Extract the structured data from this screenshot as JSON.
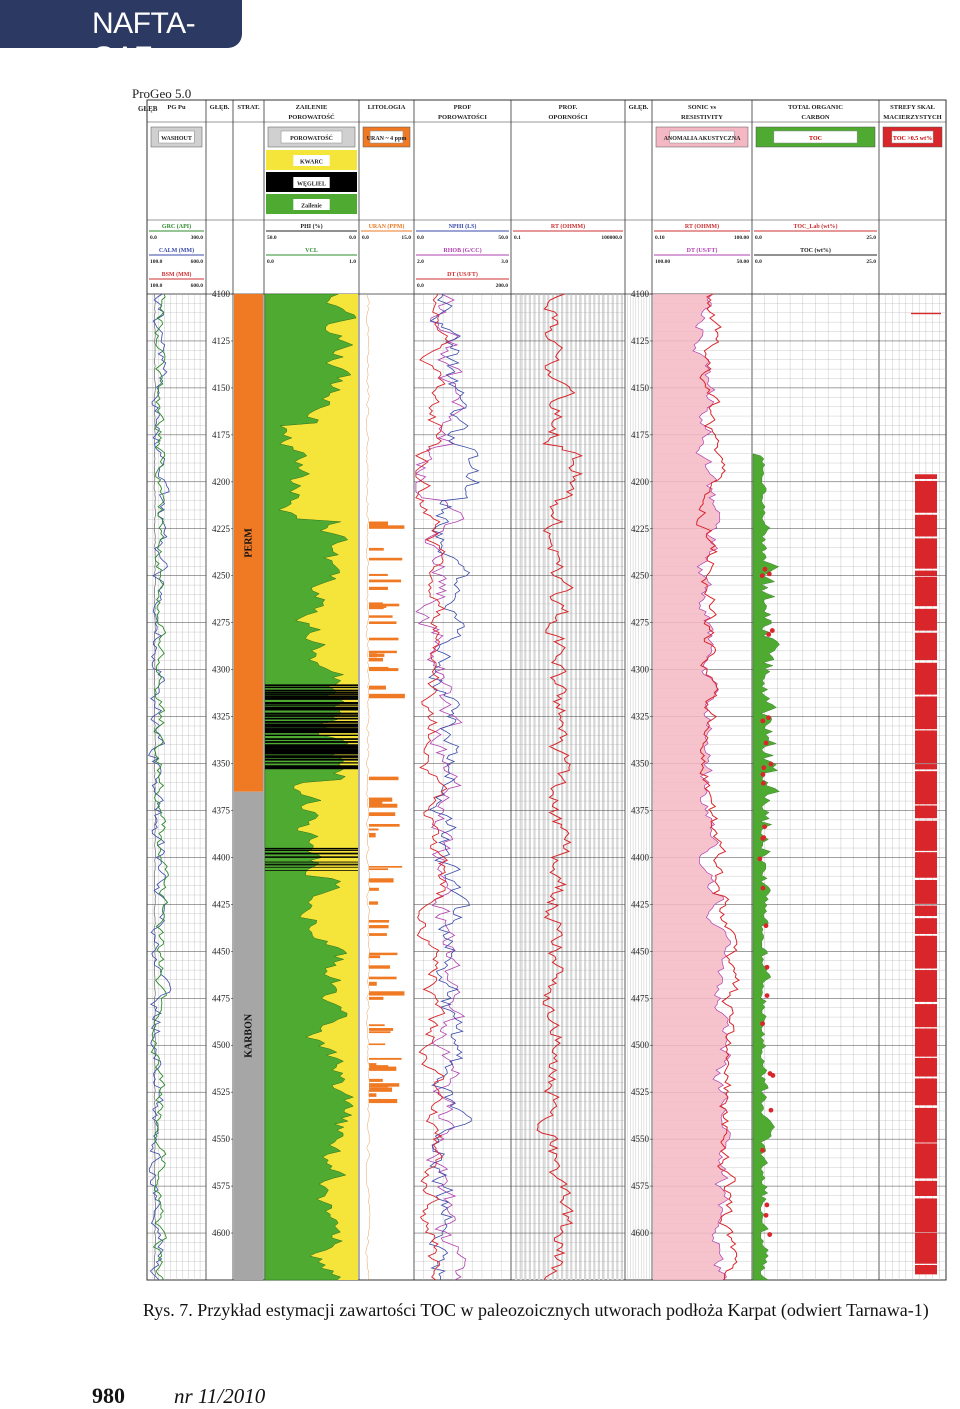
{
  "journal": {
    "title": "NAFTA-GAZ",
    "page_number": "980",
    "issue": "nr 11/2010"
  },
  "figure": {
    "software": "ProGeo 5.0",
    "caption": "Rys. 7. Przykład estymacji zawartości TOC w paleozoicznych utworach podłoża Karpat (odwiert Tarnawa-1)",
    "columns": [
      {
        "title": "PG Pu",
        "legend": "WASHOUT"
      },
      {
        "title": "GŁĘB."
      },
      {
        "title": "STRAT."
      },
      {
        "title": "ZAILENIE POROWATOŚĆ",
        "legend": "POROWATOŚĆ"
      },
      {
        "title": "LITOLOGIA",
        "legend": "URAN ~ 4 ppm"
      },
      {
        "title": "PROF POROWATOŚCI"
      },
      {
        "title": "PROF. OPORNOŚCI"
      },
      {
        "title": "GŁĘB."
      },
      {
        "title": "SONIC vs RESISTIVITY",
        "legend": "ANOMALIA AKUSTYCZNA"
      },
      {
        "title": "TOTAL ORGANIC CARBON",
        "legend": "TOC"
      },
      {
        "title": "STREFY SKAŁ MACIERZYSTYCH",
        "legend": "TOC >0.5 wt%"
      }
    ],
    "header_first_label": "GŁĘB",
    "lithology_legend": [
      "KWARC",
      "WĘGLIEL",
      "Zailenie"
    ],
    "curve_headers": {
      "c1": [
        {
          "name": "GRC (API)",
          "min": "0.0",
          "max": "300.0",
          "color": "#2e8b2e"
        },
        {
          "name": "CALM (MM)",
          "min": "100.0",
          "max": "600.0",
          "color": "#3a4aa8"
        },
        {
          "name": "BSM (MM)",
          "min": "100.0",
          "max": "600.0",
          "color": "#cc3030"
        }
      ],
      "c4": [
        {
          "name": "PHI (%)",
          "min": "50.0",
          "max": "0.0",
          "color": "#222222"
        },
        {
          "name": "VCL",
          "min": "0.0",
          "max": "1.0",
          "color": "#2e8b2e"
        }
      ],
      "c5": [
        {
          "name": "URAN (PPM)",
          "min": "0.0",
          "max": "15.0",
          "color": "#e87a22"
        }
      ],
      "c6": [
        {
          "name": "NPHI (LS)",
          "min": "0.0",
          "max": "50.0",
          "color": "#3a4aa8"
        },
        {
          "name": "RHOB (G/CC)",
          "min": "2.0",
          "max": "3.0",
          "color": "#b040b0"
        },
        {
          "name": "DT (US/FT)",
          "min": "0.0",
          "max": "200.0",
          "color": "#cc3030"
        }
      ],
      "c7": [
        {
          "name": "RT (OHMM)",
          "min": "0.1",
          "max": "100000.0",
          "color": "#cc3030"
        }
      ],
      "c9": [
        {
          "name": "RT (OHMM)",
          "min": "0.10",
          "max": "100.00",
          "color": "#cc3030"
        },
        {
          "name": "DT (US/FT)",
          "min": "100.00",
          "max": "50.00",
          "color": "#b040b0"
        }
      ],
      "c10": [
        {
          "name": "TOC_Lab (wt%)",
          "min": "0.0",
          "max": "25.0",
          "color": "#cc3030"
        },
        {
          "name": "TOC (wt%)",
          "min": "0.0",
          "max": "25.0",
          "color": "#222222"
        }
      ]
    },
    "depths": [
      "4100",
      "4125",
      "4150",
      "4175",
      "4200",
      "4225",
      "4250",
      "4275",
      "4300",
      "4325",
      "4350",
      "4375",
      "4400",
      "4425",
      "4450",
      "4475",
      "4500",
      "4525",
      "4550",
      "4575",
      "4600"
    ],
    "strat_units": [
      {
        "name": "PERM",
        "from": 4100,
        "to": 4365,
        "color": "#f07a24"
      },
      {
        "name": "KARBON",
        "from": 4365,
        "to": 4625,
        "color": "#a6a6a6"
      }
    ],
    "colors": {
      "green": "#4faa32",
      "yellow": "#f5e43a",
      "red": "#d8262b",
      "pink": "#f4b8c4",
      "orange": "#f07a24",
      "blue": "#3a4aa8",
      "purple": "#b040b0"
    }
  }
}
